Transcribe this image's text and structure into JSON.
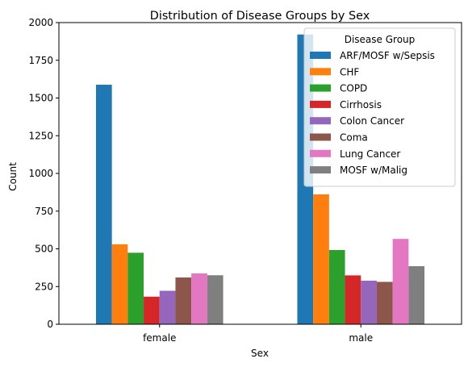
{
  "chart_data": {
    "type": "bar",
    "title": "Distribution of Disease Groups by Sex",
    "xlabel": "Sex",
    "ylabel": "Count",
    "categories": [
      "female",
      "male"
    ],
    "ylim": [
      0,
      2000
    ],
    "yticks": [
      0,
      250,
      500,
      750,
      1000,
      1250,
      1500,
      1750,
      2000
    ],
    "grid": false,
    "legend": {
      "title": "Disease Group",
      "placement": "top-right"
    },
    "series": [
      {
        "name": "ARF/MOSF w/Sepsis",
        "color": "#1f77b4",
        "values": [
          1588,
          1921
        ]
      },
      {
        "name": "CHF",
        "color": "#ff7f0e",
        "values": [
          530,
          861
        ]
      },
      {
        "name": "COPD",
        "color": "#2ca02c",
        "values": [
          474,
          492
        ]
      },
      {
        "name": "Cirrhosis",
        "color": "#d62728",
        "values": [
          183,
          324
        ]
      },
      {
        "name": "Colon Cancer",
        "color": "#9467bd",
        "values": [
          222,
          289
        ]
      },
      {
        "name": "Coma",
        "color": "#8c564b",
        "values": [
          310,
          281
        ]
      },
      {
        "name": "Lung Cancer",
        "color": "#e377c2",
        "values": [
          337,
          566
        ]
      },
      {
        "name": "MOSF w/Malig",
        "color": "#7f7f7f",
        "values": [
          325,
          385
        ]
      }
    ]
  }
}
